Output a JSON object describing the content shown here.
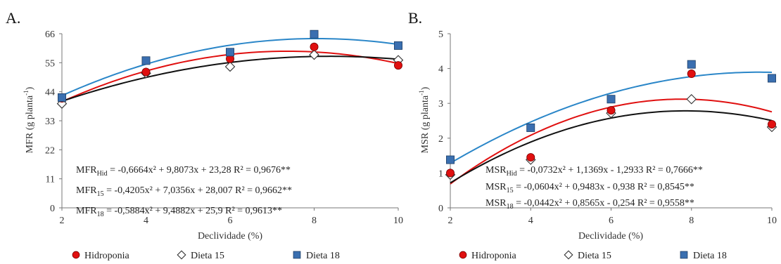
{
  "legend": {
    "items": [
      {
        "label": "Hidroponia",
        "marker": "circle",
        "color": "#e01010"
      },
      {
        "label": "Dieta 15",
        "marker": "diamond",
        "color": "#ffffff"
      },
      {
        "label": "Dieta 18",
        "marker": "square",
        "color": "#3a6fb0"
      }
    ]
  },
  "chart_data": [
    {
      "type": "scatter",
      "panel": "A.",
      "xlabel": "Declividade (%)",
      "ylabel_main": "MFR (g planta",
      "ylabel_sup": "-1",
      "ylabel_end": ")",
      "x": [
        2,
        4,
        6,
        8,
        10
      ],
      "xlim": [
        2,
        10
      ],
      "ylim": [
        0,
        66
      ],
      "xticks": [
        "2",
        "4",
        "6",
        "8",
        "10"
      ],
      "yticks": [
        "0",
        "11",
        "22",
        "33",
        "44",
        "55",
        "66"
      ],
      "series": [
        {
          "name": "Hidroponia",
          "values": [
            41.5,
            51.5,
            56.5,
            61,
            54
          ],
          "fit": [
            -0.6664,
            9.8073,
            23.28
          ],
          "color": "#e01010"
        },
        {
          "name": "Dieta 15",
          "values": [
            39.5,
            51,
            53.5,
            58,
            56
          ],
          "fit": [
            -0.4205,
            7.0356,
            28.007
          ],
          "color": "#111111"
        },
        {
          "name": "Dieta 18",
          "values": [
            41.8,
            55.8,
            59,
            65.8,
            61.5
          ],
          "fit": [
            -0.5884,
            9.4882,
            25.9
          ],
          "color": "#2a86c8"
        }
      ],
      "equations": [
        {
          "lhs": "MFR",
          "sub": "Hid",
          "rhs": " = -0,6664x² + 9,8073x + 23,28   R² = 0,9676**"
        },
        {
          "lhs": "MFR",
          "sub": "15",
          "rhs": " = -0,4205x² + 7,0356x + 28,007   R² = 0,9662**"
        },
        {
          "lhs": "MFR",
          "sub": "18",
          "rhs": " = -0,5884x² + 9,4882x + 25,9   R² = 0,9613**"
        }
      ]
    },
    {
      "type": "scatter",
      "panel": "B.",
      "xlabel": "Declividade (%)",
      "ylabel_main": "MSR (g planta",
      "ylabel_sup": "-1",
      "ylabel_end": ")",
      "x": [
        2,
        4,
        6,
        8,
        10
      ],
      "xlim": [
        2,
        10
      ],
      "ylim": [
        0,
        5
      ],
      "xticks": [
        "2",
        "4",
        "6",
        "8",
        "10"
      ],
      "yticks": [
        "0",
        "1",
        "2",
        "3",
        "4",
        "5"
      ],
      "series": [
        {
          "name": "Hidroponia",
          "values": [
            1.0,
            1.45,
            2.8,
            3.85,
            2.4
          ],
          "fit": [
            -0.0732,
            1.1369,
            -1.2933
          ],
          "color": "#e01010"
        },
        {
          "name": "Dieta 15",
          "values": [
            0.95,
            1.38,
            2.72,
            3.12,
            2.32
          ],
          "fit": [
            -0.0604,
            0.9483,
            -0.938
          ],
          "color": "#111111"
        },
        {
          "name": "Dieta 18",
          "values": [
            1.38,
            2.3,
            3.12,
            4.12,
            3.72
          ],
          "fit": [
            -0.0442,
            0.8565,
            -0.254
          ],
          "color": "#2a86c8"
        }
      ],
      "equations": [
        {
          "lhs": "MSR",
          "sub": "Hid",
          "rhs": " = -0,0732x² + 1,1369x - 1,2933   R² = 0,7666**"
        },
        {
          "lhs": "MSR",
          "sub": "15",
          "rhs": " = -0,0604x² + 0,9483x - 0,938   R² = 0,8545**"
        },
        {
          "lhs": "MSR",
          "sub": "18",
          "rhs": " = -0,0442x² + 0,8565x - 0,254   R² = 0,9558**"
        }
      ]
    }
  ]
}
